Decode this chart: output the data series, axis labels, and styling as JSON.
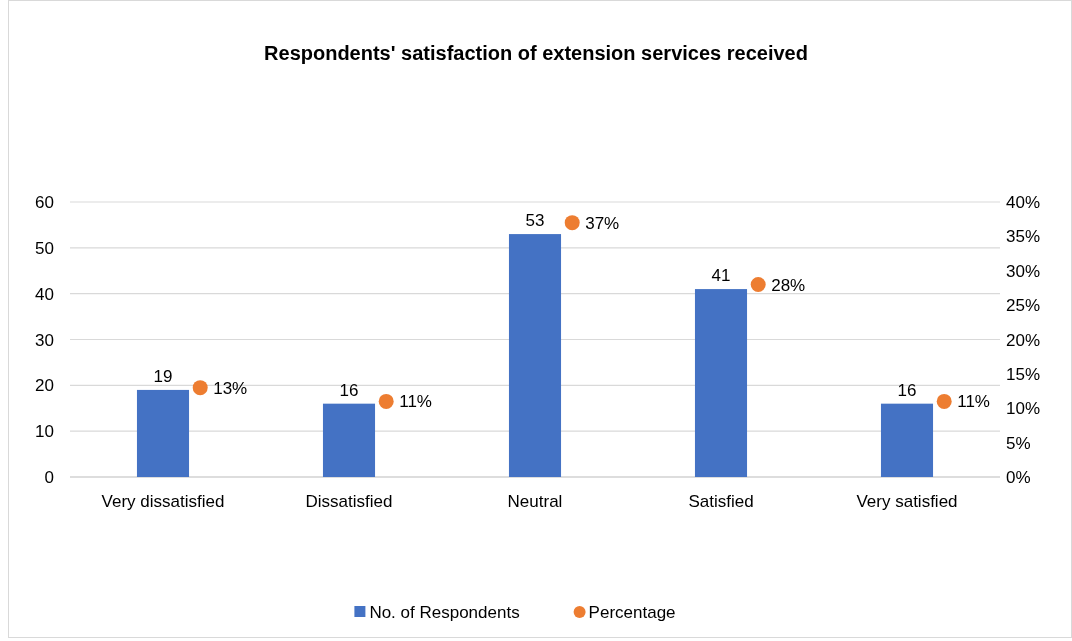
{
  "chart_data": {
    "type": "bar",
    "title": "Respondents' satisfaction of extension services received",
    "categories": [
      "Very dissatisfied",
      "Dissatisfied",
      "Neutral",
      "Satisfied",
      "Very satisfied"
    ],
    "series": [
      {
        "name": "No. of Respondents",
        "color": "#4472c4",
        "values": [
          19,
          16,
          53,
          41,
          16
        ],
        "value_labels": [
          "19",
          "16",
          "53",
          "41",
          "16"
        ]
      },
      {
        "name": "Percentage",
        "type": "scatter",
        "axis": "y2",
        "color": "#ed7d31",
        "x": [
          "Very dissatisfied",
          "Dissatisfied",
          "Neutral",
          "Satisfied",
          "Very satisfied"
        ],
        "values": [
          13,
          11,
          37,
          28,
          11
        ],
        "value_labels": [
          "13%",
          "11%",
          "37%",
          "28%",
          "11%"
        ]
      }
    ],
    "ylim": [
      0,
      60
    ],
    "yticks": [
      0,
      10,
      20,
      30,
      40,
      50,
      60
    ],
    "y2lim": [
      0,
      40
    ],
    "y2ticks": [
      {
        "value": 0,
        "label": "0%"
      },
      {
        "value": 5,
        "label": "5%"
      },
      {
        "value": 10,
        "label": "10%"
      },
      {
        "value": 15,
        "label": "15%"
      },
      {
        "value": 20,
        "label": "20%"
      },
      {
        "value": 25,
        "label": "25%"
      },
      {
        "value": 30,
        "label": "30%"
      },
      {
        "value": 35,
        "label": "35%"
      },
      {
        "value": 40,
        "label": "40%"
      }
    ],
    "grid": "y",
    "legend": "bottom",
    "marker": "circle"
  }
}
